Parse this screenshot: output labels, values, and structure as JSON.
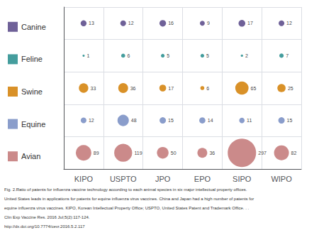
{
  "chart_data": {
    "type": "bubble",
    "categories": [
      "KIPO",
      "USPTO",
      "JPO",
      "EPO",
      "SIPO",
      "WIPO"
    ],
    "series": [
      {
        "name": "Canine",
        "color": "#5b4b8a",
        "values": [
          13,
          12,
          16,
          9,
          17,
          12
        ]
      },
      {
        "name": "Feline",
        "color": "#2a9090",
        "values": [
          1,
          6,
          5,
          5,
          2,
          7
        ]
      },
      {
        "name": "Swine",
        "color": "#d4820a",
        "values": [
          33,
          36,
          17,
          6,
          65,
          25
        ]
      },
      {
        "name": "Equine",
        "color": "#7a8fc4",
        "values": [
          12,
          48,
          15,
          14,
          11,
          15
        ]
      },
      {
        "name": "Avian",
        "color": "#c47a7a",
        "values": [
          89,
          119,
          50,
          36,
          297,
          82
        ]
      }
    ],
    "data_labels": true,
    "legend": "left",
    "tick_labels": "x",
    "grid": true,
    "annotations": [
      "Fig. 2.Ratio of patents for influenza vaccine technology according to each animal species in six major intellectual property offices.",
      "United States leads in applications for patents for equine influenza virus vaccines. China and Japan had a high number of patents for",
      "equine influenza virus vaccines. KIPO, Korean Intellectual Property Office; USPTO, United States Patent and Trademark Office. . .",
      "Clin Exp Vaccine Res. 2016 Jul;5(2):117-124.",
      "http://dx.doi.org/10.7774/cevr.2016.5.2.117"
    ]
  }
}
